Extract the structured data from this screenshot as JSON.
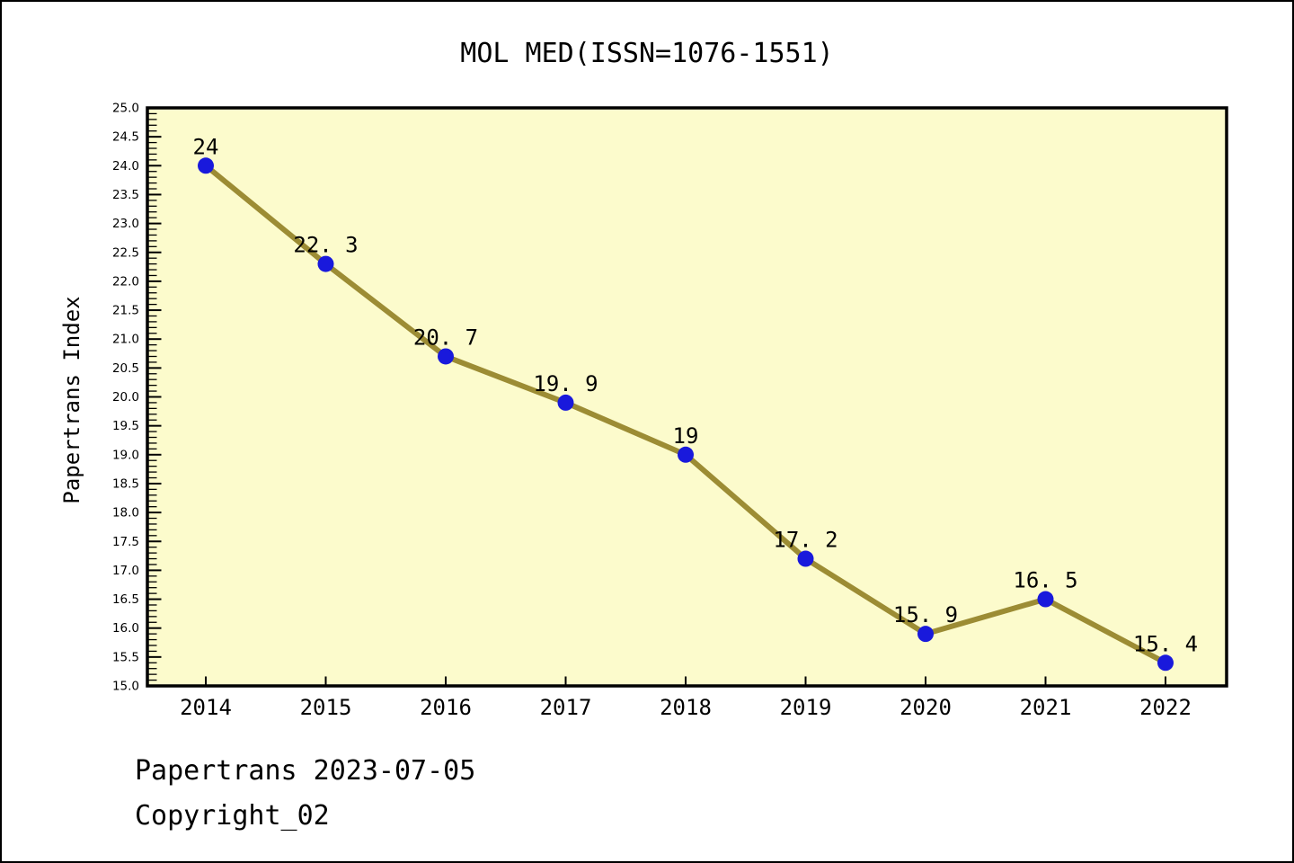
{
  "title": "MOL MED(ISSN=1076-1551)",
  "footer": {
    "line1": "Papertrans 2023-07-05",
    "line2": "Copyright_02"
  },
  "chart_data": {
    "type": "line",
    "title": "MOL MED(ISSN=1076-1551)",
    "xlabel": "",
    "ylabel": "Papertrans Index",
    "categories": [
      "2014",
      "2015",
      "2016",
      "2017",
      "2018",
      "2019",
      "2020",
      "2021",
      "2022"
    ],
    "values": [
      24,
      22.3,
      20.7,
      19.9,
      19,
      17.2,
      15.9,
      16.5,
      15.4
    ],
    "point_labels": [
      "24",
      "22. 3",
      "20. 7",
      "19. 9",
      "19",
      "17. 2",
      "15. 9",
      "16. 5",
      "15. 4"
    ],
    "ylim": [
      15.0,
      25.0
    ],
    "ytick_step": 0.5,
    "yminor_step": 0.1,
    "grid": false,
    "legend": "none",
    "colors": {
      "plot_bg": "#fcfbcc",
      "line": "#9c8c34",
      "marker": "#1919dc",
      "axis": "#000000",
      "text": "#000000"
    }
  }
}
